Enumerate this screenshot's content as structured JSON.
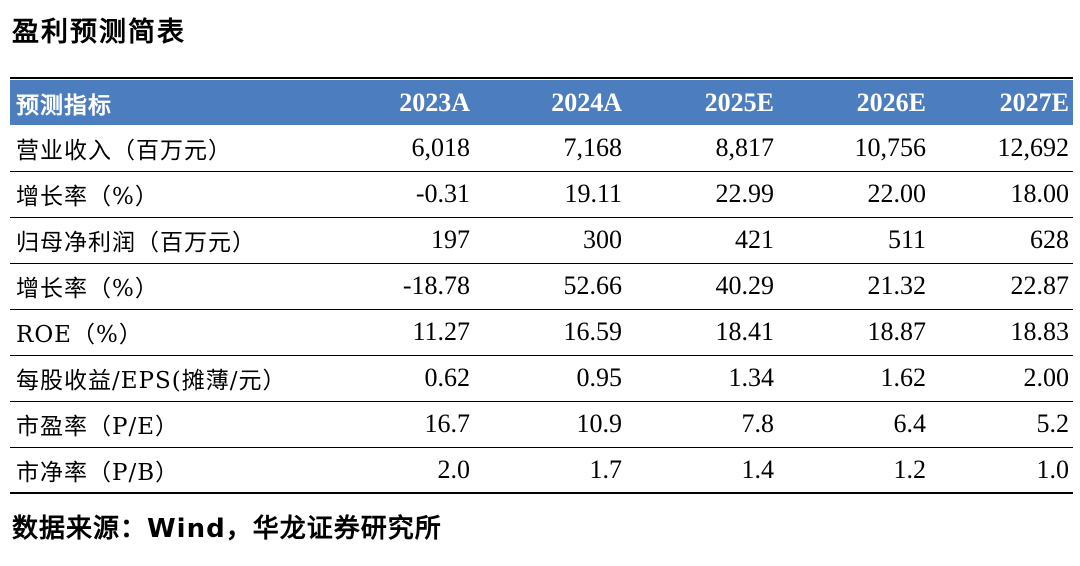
{
  "title": "盈利预测简表",
  "table": {
    "headers": [
      "预测指标",
      "2023A",
      "2024A",
      "2025E",
      "2026E",
      "2027E"
    ],
    "rows": [
      {
        "label": "营业收入（百万元）",
        "values": [
          "6,018",
          "7,168",
          "8,817",
          "10,756",
          "12,692"
        ]
      },
      {
        "label": "增长率（%）",
        "values": [
          "-0.31",
          "19.11",
          "22.99",
          "22.00",
          "18.00"
        ]
      },
      {
        "label": "归母净利润（百万元）",
        "values": [
          "197",
          "300",
          "421",
          "511",
          "628"
        ]
      },
      {
        "label": "增长率（%）",
        "values": [
          "-18.78",
          "52.66",
          "40.29",
          "21.32",
          "22.87"
        ]
      },
      {
        "label": "ROE（%）",
        "values": [
          "11.27",
          "16.59",
          "18.41",
          "18.87",
          "18.83"
        ]
      },
      {
        "label": "每股收益/EPS(摊薄/元）",
        "values": [
          "0.62",
          "0.95",
          "1.34",
          "1.62",
          "2.00"
        ]
      },
      {
        "label": "市盈率（P/E）",
        "values": [
          "16.7",
          "10.9",
          "7.8",
          "6.4",
          "5.2"
        ]
      },
      {
        "label": "市净率（P/B）",
        "values": [
          "2.0",
          "1.7",
          "1.4",
          "1.2",
          "1.0"
        ]
      }
    ],
    "header_color": "#4b7dbf"
  },
  "source": "数据来源：Wind，华龙证券研究所"
}
